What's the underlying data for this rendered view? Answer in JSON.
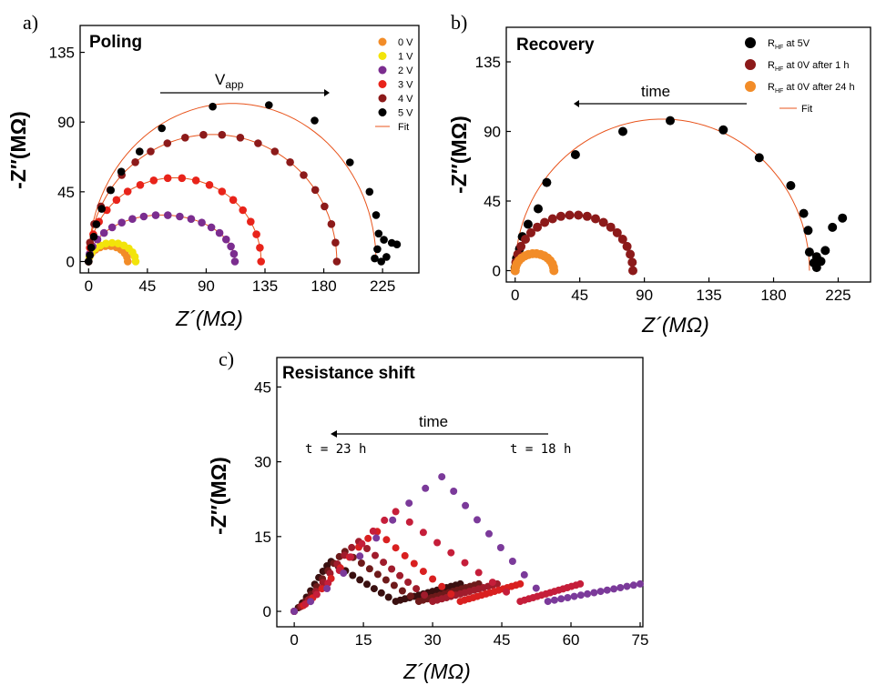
{
  "chart_data": [
    {
      "id": "a",
      "type": "scatter",
      "panel_letter": "a)",
      "title": "Poling",
      "xlabel": "Z´(MΩ)",
      "ylabel": "-Z″(MΩ)",
      "xlim": [
        -3,
        250
      ],
      "ylim": [
        -5,
        150
      ],
      "xticks": [
        0,
        45,
        90,
        135,
        180,
        225
      ],
      "yticks": [
        0,
        45,
        90,
        135
      ],
      "legend_position": "top-right",
      "annotation": {
        "text": "V",
        "sub": "app",
        "arrow": "right"
      },
      "series": [
        {
          "name": "0 V",
          "color": "#f28c28",
          "arc": {
            "x0": 0,
            "x1": 30,
            "h": 10
          },
          "n": 12
        },
        {
          "name": "1 V",
          "color": "#f2e40a",
          "arc": {
            "x0": 0,
            "x1": 36,
            "h": 12
          },
          "n": 13
        },
        {
          "name": "2 V",
          "color": "#7b2d8f",
          "arc": {
            "x0": 0,
            "x1": 112,
            "h": 30
          },
          "n": 20
        },
        {
          "name": "3 V",
          "color": "#e8231a",
          "arc": {
            "x0": 0,
            "x1": 132,
            "h": 54
          },
          "n": 20
        },
        {
          "name": "4 V",
          "color": "#8c1a1a",
          "arc": {
            "x0": 0,
            "x1": 190,
            "h": 82
          },
          "n": 22
        },
        {
          "name": "5 V",
          "color": "#000000",
          "points": [
            [
              0,
              0
            ],
            [
              1,
              4
            ],
            [
              2,
              9
            ],
            [
              4,
              16
            ],
            [
              6,
              24
            ],
            [
              10,
              34
            ],
            [
              17,
              46
            ],
            [
              25,
              58
            ],
            [
              39,
              71
            ],
            [
              56,
              86
            ],
            [
              95,
              100
            ],
            [
              138,
              101
            ],
            [
              173,
              91
            ],
            [
              200,
              64
            ],
            [
              215,
              45
            ],
            [
              220,
              30
            ],
            [
              222,
              18
            ],
            [
              221,
              8
            ],
            [
              226,
              14
            ],
            [
              232,
              12
            ],
            [
              236,
              11
            ],
            [
              228,
              3
            ],
            [
              224,
              0
            ],
            [
              219,
              2
            ]
          ]
        },
        {
          "name": "Fit",
          "color": "#e8541c",
          "type": "line"
        }
      ],
      "fit_arcs": [
        {
          "x0": 0,
          "x1": 30,
          "h": 10
        },
        {
          "x0": 0,
          "x1": 36,
          "h": 12
        },
        {
          "x0": 0,
          "x1": 112,
          "h": 30
        },
        {
          "x0": 0,
          "x1": 132,
          "h": 54
        },
        {
          "x0": 0,
          "x1": 190,
          "h": 82
        },
        {
          "x0": 0,
          "x1": 220,
          "h": 102
        }
      ]
    },
    {
      "id": "b",
      "type": "scatter",
      "panel_letter": "b)",
      "title": "Recovery",
      "xlabel": "Z´(MΩ)",
      "ylabel": "-Z″(MΩ)",
      "xlim": [
        -3,
        245
      ],
      "ylim": [
        -5,
        155
      ],
      "xticks": [
        0,
        45,
        90,
        135,
        180,
        225
      ],
      "yticks": [
        0,
        45,
        90,
        135
      ],
      "legend_position": "top-right",
      "annotation": {
        "text": "time",
        "arrow": "left"
      },
      "series": [
        {
          "name": "R",
          "sub": "HF",
          "suffix": " at 5V",
          "color": "#000000",
          "points": [
            [
              0,
              2
            ],
            [
              1,
              8
            ],
            [
              3,
              14
            ],
            [
              5,
              22
            ],
            [
              9,
              30
            ],
            [
              16,
              40
            ],
            [
              22,
              57
            ],
            [
              42,
              75
            ],
            [
              75,
              90
            ],
            [
              108,
              97
            ],
            [
              145,
              91
            ],
            [
              170,
              73
            ],
            [
              192,
              55
            ],
            [
              201,
              37
            ],
            [
              204,
              26
            ],
            [
              205,
              12
            ],
            [
              210,
              9
            ],
            [
              213,
              6
            ],
            [
              208,
              5
            ],
            [
              210,
              2
            ],
            [
              216,
              13
            ],
            [
              221,
              28
            ],
            [
              228,
              34
            ]
          ]
        },
        {
          "name": "R",
          "sub": "HF",
          "suffix": " at 0V after 1 h",
          "color": "#8c1a1a",
          "arc": {
            "x0": 0,
            "x1": 82,
            "h": 36
          },
          "n": 22
        },
        {
          "name": "R",
          "sub": "HF",
          "suffix": " at 0V after 24 h",
          "color": "#f28c28",
          "arc": {
            "x0": 0,
            "x1": 27,
            "h": 11
          },
          "n": 16
        },
        {
          "name": "Fit",
          "color": "#e8541c",
          "type": "line"
        }
      ],
      "fit_arcs": [
        {
          "x0": 0,
          "x1": 82,
          "h": 36
        },
        {
          "x0": 0,
          "x1": 205,
          "h": 98
        },
        {
          "x0": 0,
          "x1": 27,
          "h": 11
        }
      ]
    },
    {
      "id": "c",
      "type": "scatter",
      "panel_letter": "c)",
      "title": "Resistance shift",
      "xlabel": "Z´(MΩ)",
      "ylabel": "-Z″(MΩ)",
      "xlim": [
        -2,
        75
      ],
      "ylim": [
        -2,
        50
      ],
      "xticks": [
        0,
        15,
        30,
        45,
        60,
        75
      ],
      "yticks": [
        0,
        15,
        30,
        45
      ],
      "annotation": {
        "text": "time",
        "arrow": "left",
        "left_label": "t = 23 h",
        "right_label": "t = 18 h"
      },
      "series": [
        {
          "color": "#7b3a9a",
          "peak_x": 32,
          "h": 27,
          "end": 55,
          "tail_to": 75
        },
        {
          "color": "#c51e3a",
          "peak_x": 22,
          "h": 20,
          "end": 49,
          "tail_to": 62
        },
        {
          "color": "#d92020",
          "peak_x": 18,
          "h": 16,
          "end": 36,
          "tail_to": 49
        },
        {
          "color": "#a01c2c",
          "peak_x": 14,
          "h": 14,
          "end": 30,
          "tail_to": 44
        },
        {
          "color": "#6e1a1a",
          "peak_x": 11,
          "h": 12,
          "end": 27,
          "tail_to": 40
        },
        {
          "color": "#3a1010",
          "peak_x": 8,
          "h": 10,
          "end": 22,
          "tail_to": 36
        }
      ]
    }
  ]
}
